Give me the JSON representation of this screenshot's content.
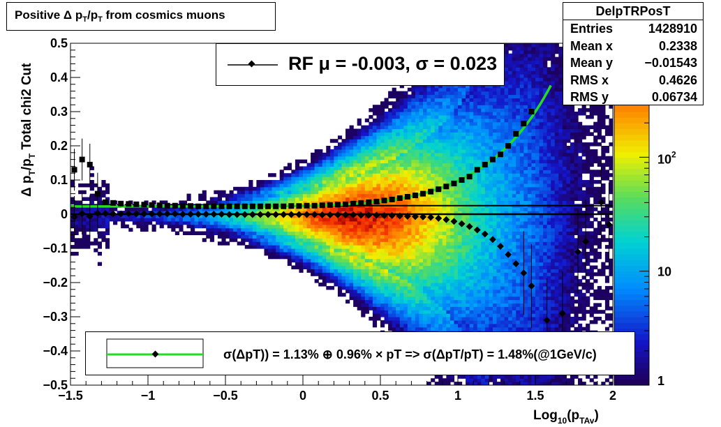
{
  "title": "Positive Δ p_T/p_T from cosmics muons",
  "stats": {
    "name": "DelpTRPosT",
    "rows": [
      {
        "label": "Entries",
        "value": "1428910"
      },
      {
        "label": "Mean x",
        "value": "0.2338"
      },
      {
        "label": "Mean y",
        "value": "−0.01543"
      },
      {
        "label": "RMS x",
        "value": "0.4626"
      },
      {
        "label": "RMS y",
        "value": "0.06734"
      }
    ]
  },
  "rf_label": "RF μ = -0.003, σ =   0.023",
  "fit_label": "σ(ΔpT)) =  1.13% ⊕  0.96% × pT => σ(ΔpT/pT) =  1.48%(@1GeV/c)",
  "colors": {
    "fit_curve": "#22dd22",
    "markers": "#000000"
  },
  "chart_data": {
    "type": "heatmap",
    "title": "Positive Δ p_T/p_T from cosmics muons",
    "xlabel": "Log10(pTAv)",
    "ylabel": "Δ p_T/p_T   Total chi2 Cut",
    "xlim": [
      -1.5,
      2
    ],
    "ylim": [
      -0.5,
      0.5
    ],
    "x_ticks": [
      "−1.5",
      "−1",
      "−0.5",
      "0",
      "0.5",
      "1",
      "1.5",
      "2"
    ],
    "y_ticks": [
      "0.5",
      "0.4",
      "0.3",
      "0.2",
      "0.1",
      "0",
      "−0.1",
      "−0.2",
      "−0.3",
      "−0.4",
      "−0.5"
    ],
    "z_scale": "log",
    "z_ticks": [
      "1",
      "10",
      "10^2"
    ],
    "z_range": [
      1,
      1000
    ],
    "mean_points": {
      "x": [
        -1.475,
        -1.425,
        -1.375,
        -1.325,
        -1.275,
        -1.225,
        -1.175,
        -1.125,
        -1.075,
        -1.025,
        -0.975,
        -0.925,
        -0.875,
        -0.825,
        -0.775,
        -0.725,
        -0.675,
        -0.625,
        -0.575,
        -0.525,
        -0.475,
        -0.425,
        -0.375,
        -0.325,
        -0.275,
        -0.225,
        -0.175,
        -0.125,
        -0.075,
        -0.025,
        0.025,
        0.075,
        0.125,
        0.175,
        0.225,
        0.275,
        0.325,
        0.375,
        0.425,
        0.475,
        0.525,
        0.575,
        0.625,
        0.675,
        0.725,
        0.775,
        0.825,
        0.875,
        0.925,
        0.975,
        1.025,
        1.075,
        1.125,
        1.175,
        1.225,
        1.275,
        1.325,
        1.375,
        1.425,
        1.475,
        1.525,
        1.575,
        1.625,
        1.675,
        1.725,
        1.775,
        1.825,
        1.875,
        1.925,
        1.975
      ],
      "y": [
        -0.008,
        0.002,
        -0.006,
        0.003,
        0.002,
        0.001,
        0.001,
        0.002,
        0.001,
        0.001,
        0.001,
        0.001,
        0.001,
        0.001,
        0.0,
        0.0,
        0.0,
        0.0,
        0.0,
        0.0,
        -0.001,
        -0.001,
        -0.001,
        -0.001,
        -0.001,
        -0.001,
        -0.001,
        -0.001,
        -0.001,
        -0.001,
        -0.001,
        -0.001,
        -0.002,
        -0.002,
        -0.002,
        -0.002,
        -0.002,
        -0.003,
        -0.003,
        -0.003,
        -0.004,
        -0.004,
        -0.005,
        -0.006,
        -0.007,
        -0.008,
        -0.009,
        -0.012,
        -0.016,
        -0.021,
        -0.028,
        -0.036,
        -0.046,
        -0.058,
        -0.074,
        -0.094,
        -0.118,
        -0.145,
        -0.172,
        -0.21,
        null,
        -0.31,
        null,
        -0.29,
        null,
        -0.11,
        -0.08,
        null,
        0.035,
        -0.03
      ]
    },
    "rms_points": {
      "x": [
        -1.475,
        -1.425,
        -1.375,
        -1.325,
        -1.275,
        -1.225,
        -1.175,
        -1.125,
        -1.075,
        -1.025,
        -0.975,
        -0.925,
        -0.875,
        -0.825,
        -0.775,
        -0.725,
        -0.675,
        -0.625,
        -0.575,
        -0.525,
        -0.475,
        -0.425,
        -0.375,
        -0.325,
        -0.275,
        -0.225,
        -0.175,
        -0.125,
        -0.075,
        -0.025,
        0.025,
        0.075,
        0.125,
        0.175,
        0.225,
        0.275,
        0.325,
        0.375,
        0.425,
        0.475,
        0.525,
        0.575,
        0.625,
        0.675,
        0.725,
        0.775,
        0.825,
        0.875,
        0.925,
        0.975,
        1.025,
        1.075,
        1.125,
        1.175,
        1.225,
        1.275,
        1.325,
        1.375,
        1.425,
        1.475
      ],
      "y": [
        0.13,
        0.16,
        0.145,
        0.06,
        0.035,
        0.033,
        0.031,
        0.03,
        0.029,
        0.028,
        0.027,
        0.026,
        0.025,
        0.025,
        0.024,
        0.024,
        0.023,
        0.023,
        0.023,
        0.023,
        0.023,
        0.023,
        0.023,
        0.023,
        0.023,
        0.023,
        0.023,
        0.023,
        0.024,
        0.024,
        0.025,
        0.025,
        0.026,
        0.027,
        0.028,
        0.029,
        0.031,
        0.033,
        0.035,
        0.037,
        0.04,
        0.043,
        0.047,
        0.051,
        0.055,
        0.06,
        0.066,
        0.073,
        0.081,
        0.09,
        0.1,
        0.11,
        0.13,
        0.145,
        0.16,
        0.175,
        0.2,
        0.235,
        0.265,
        0.3
      ]
    },
    "fit_curve": {
      "x_range": [
        -1.5,
        1.6
      ],
      "y0": 0.0226
    }
  }
}
